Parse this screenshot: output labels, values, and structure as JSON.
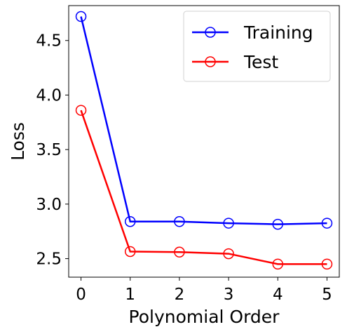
{
  "chart_data": {
    "type": "line",
    "xlabel": "Polynomial Order",
    "ylabel": "Loss",
    "x": [
      0,
      1,
      2,
      3,
      4,
      5
    ],
    "xlim": [
      -0.25,
      5.25
    ],
    "ylim": [
      2.33,
      4.82
    ],
    "xticks": [
      "0",
      "1",
      "2",
      "3",
      "4",
      "5"
    ],
    "yticks": [
      "2.5",
      "3.0",
      "3.5",
      "4.0",
      "4.5"
    ],
    "legend_position": "top-right",
    "grid": false,
    "series": [
      {
        "name": "Training",
        "color": "#0000ff",
        "marker": "open-circle",
        "values": [
          4.72,
          2.84,
          2.84,
          2.825,
          2.815,
          2.825
        ]
      },
      {
        "name": "Test",
        "color": "#ff0000",
        "marker": "open-circle",
        "values": [
          3.86,
          2.565,
          2.56,
          2.545,
          2.45,
          2.45
        ]
      }
    ]
  }
}
